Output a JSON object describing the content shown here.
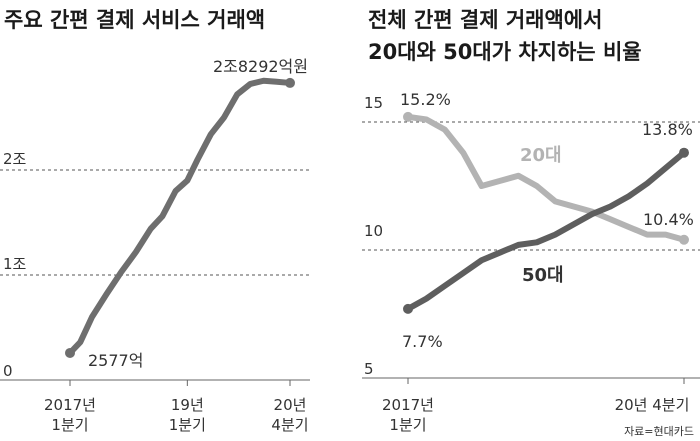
{
  "source": "자료=현대카드",
  "chart_data": [
    {
      "type": "line",
      "title": "주요 간편 결제 서비스 거래액",
      "ylim": [
        0,
        28292
      ],
      "y_ticks": [
        {
          "value": 0,
          "label": "0"
        },
        {
          "value": 10000,
          "label": "1조"
        },
        {
          "value": 20000,
          "label": "2조"
        }
      ],
      "x_ticks": [
        {
          "index": 0,
          "line1": "2017년",
          "line2": "1분기"
        },
        {
          "index": 8,
          "line1": "19년",
          "line2": "1분기"
        },
        {
          "index": 15,
          "line1": "20년",
          "line2": "4분기"
        }
      ],
      "annotations": [
        {
          "index": 0,
          "text": "2577억"
        },
        {
          "index": 15,
          "text": "2조8292억원"
        }
      ],
      "series": [
        {
          "color": "#6e6e6e",
          "x": [
            0,
            0.7,
            1.5,
            2.5,
            3.5,
            4.5,
            5.5,
            6.3,
            7.2,
            8,
            8.7,
            9.6,
            10.5,
            11.4,
            12.3,
            13.2,
            14.1,
            15
          ],
          "values": [
            2577,
            3600,
            6000,
            8200,
            10300,
            12200,
            14400,
            15600,
            18000,
            19000,
            21000,
            23400,
            25000,
            27200,
            28200,
            28500,
            28400,
            28292
          ]
        }
      ]
    },
    {
      "type": "line",
      "title": "전체 간편 결제 거래액에서 20대와 50대가 차지하는 비율",
      "title_lines": [
        "전체 간편 결제 거래액에서",
        "20대와 50대가 차지하는 비율"
      ],
      "ylim": [
        5,
        15.2
      ],
      "y_ticks": [
        {
          "value": 5,
          "label": "5"
        },
        {
          "value": 10,
          "label": "10"
        },
        {
          "value": 15,
          "label": "15"
        }
      ],
      "x_ticks": [
        {
          "index": 0,
          "line1": "2017년",
          "line2": "1분기"
        },
        {
          "index": 15,
          "line1": "20년 4분기",
          "line2": ""
        }
      ],
      "series": [
        {
          "name": "20대",
          "color": "#b3b3b3",
          "values": [
            15.2,
            15.1,
            14.7,
            13.8,
            12.5,
            12.7,
            12.9,
            12.5,
            11.9,
            11.7,
            11.5,
            11.2,
            10.9,
            10.6,
            10.6,
            10.4
          ],
          "start_label": "15.2%",
          "end_label": "10.4%"
        },
        {
          "name": "50대",
          "color": "#5e5e5e",
          "values": [
            7.7,
            8.1,
            8.6,
            9.1,
            9.6,
            9.9,
            10.2,
            10.3,
            10.6,
            11.0,
            11.4,
            11.7,
            12.1,
            12.6,
            13.2,
            13.8
          ],
          "start_label": "7.7%",
          "end_label": "13.8%"
        }
      ]
    }
  ]
}
